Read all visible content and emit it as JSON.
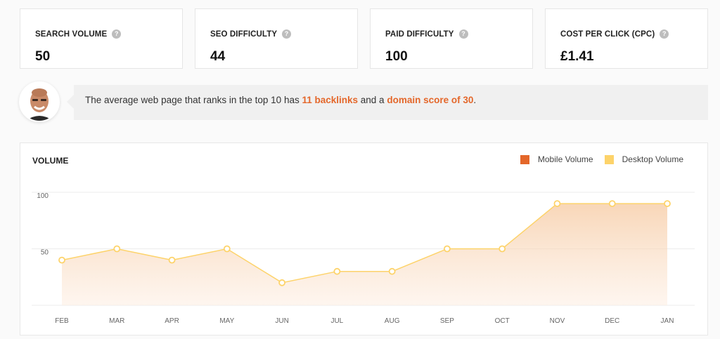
{
  "metrics": [
    {
      "label": "SEARCH VOLUME",
      "value": "50"
    },
    {
      "label": "SEO DIFFICULTY",
      "value": "44"
    },
    {
      "label": "PAID DIFFICULTY",
      "value": "100"
    },
    {
      "label": "COST PER CLICK (CPC)",
      "value": "£1.41"
    }
  ],
  "help_glyph": "?",
  "tip": {
    "prefix": "The average web page that ranks in the top 10 has ",
    "backlinks": "11 backlinks",
    "middle": " and a ",
    "domain_score": "domain score of 30",
    "suffix": "."
  },
  "chart": {
    "title": "VOLUME",
    "legend": [
      {
        "label": "Mobile Volume",
        "color": "#e4672a"
      },
      {
        "label": "Desktop Volume",
        "color": "#fdd36a"
      }
    ]
  },
  "chart_data": {
    "type": "area",
    "title": "VOLUME",
    "xlabel": "",
    "ylabel": "",
    "categories": [
      "FEB",
      "MAR",
      "APR",
      "MAY",
      "JUN",
      "JUL",
      "AUG",
      "SEP",
      "OCT",
      "NOV",
      "DEC",
      "JAN"
    ],
    "series": [
      {
        "name": "Desktop Volume",
        "color": "#fdd36a",
        "values": [
          40,
          50,
          40,
          50,
          20,
          30,
          30,
          50,
          50,
          90,
          90,
          90
        ]
      }
    ],
    "yticks": [
      50,
      100
    ],
    "ylim": [
      0,
      100
    ],
    "grid": true,
    "legend_position": "top-right"
  }
}
